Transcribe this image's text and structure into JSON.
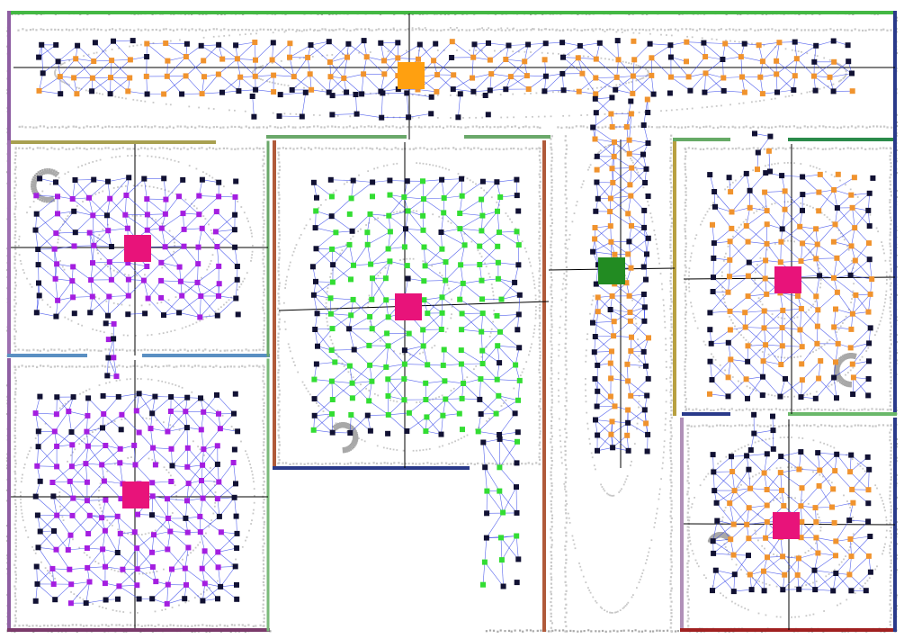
{
  "colors": {
    "background": "#ffffff",
    "scan_points": "#c8c8c8",
    "scan_dark": "#a8a8a8",
    "edge": "#2d3fe8",
    "crosshair": "#000000",
    "frontier_node": "#111133",
    "node_orange": "#f0932e",
    "node_purple": "#a41ee0",
    "node_green": "#33dd33",
    "hub_orange": "#ffa010",
    "hub_green": "#228b22",
    "hub_magenta": "#e8137a"
  },
  "icons": {
    "scan_map": "occupancy-scan-dots",
    "node": "square-node",
    "hub": "square-hub-node"
  },
  "regions": [
    {
      "id": "corridor-top",
      "node_type": "orange",
      "hub": "orange"
    },
    {
      "id": "room-top-left",
      "node_type": "purple",
      "hub": "magenta"
    },
    {
      "id": "room-bottom-left",
      "node_type": "purple",
      "hub": "magenta"
    },
    {
      "id": "room-center",
      "node_type": "green",
      "hub": "magenta"
    },
    {
      "id": "corridor-vertical",
      "node_type": "orange",
      "hub": "green"
    },
    {
      "id": "room-top-right",
      "node_type": "orange",
      "hub": "magenta"
    },
    {
      "id": "room-bottom-right",
      "node_type": "orange",
      "hub": "magenta"
    }
  ]
}
